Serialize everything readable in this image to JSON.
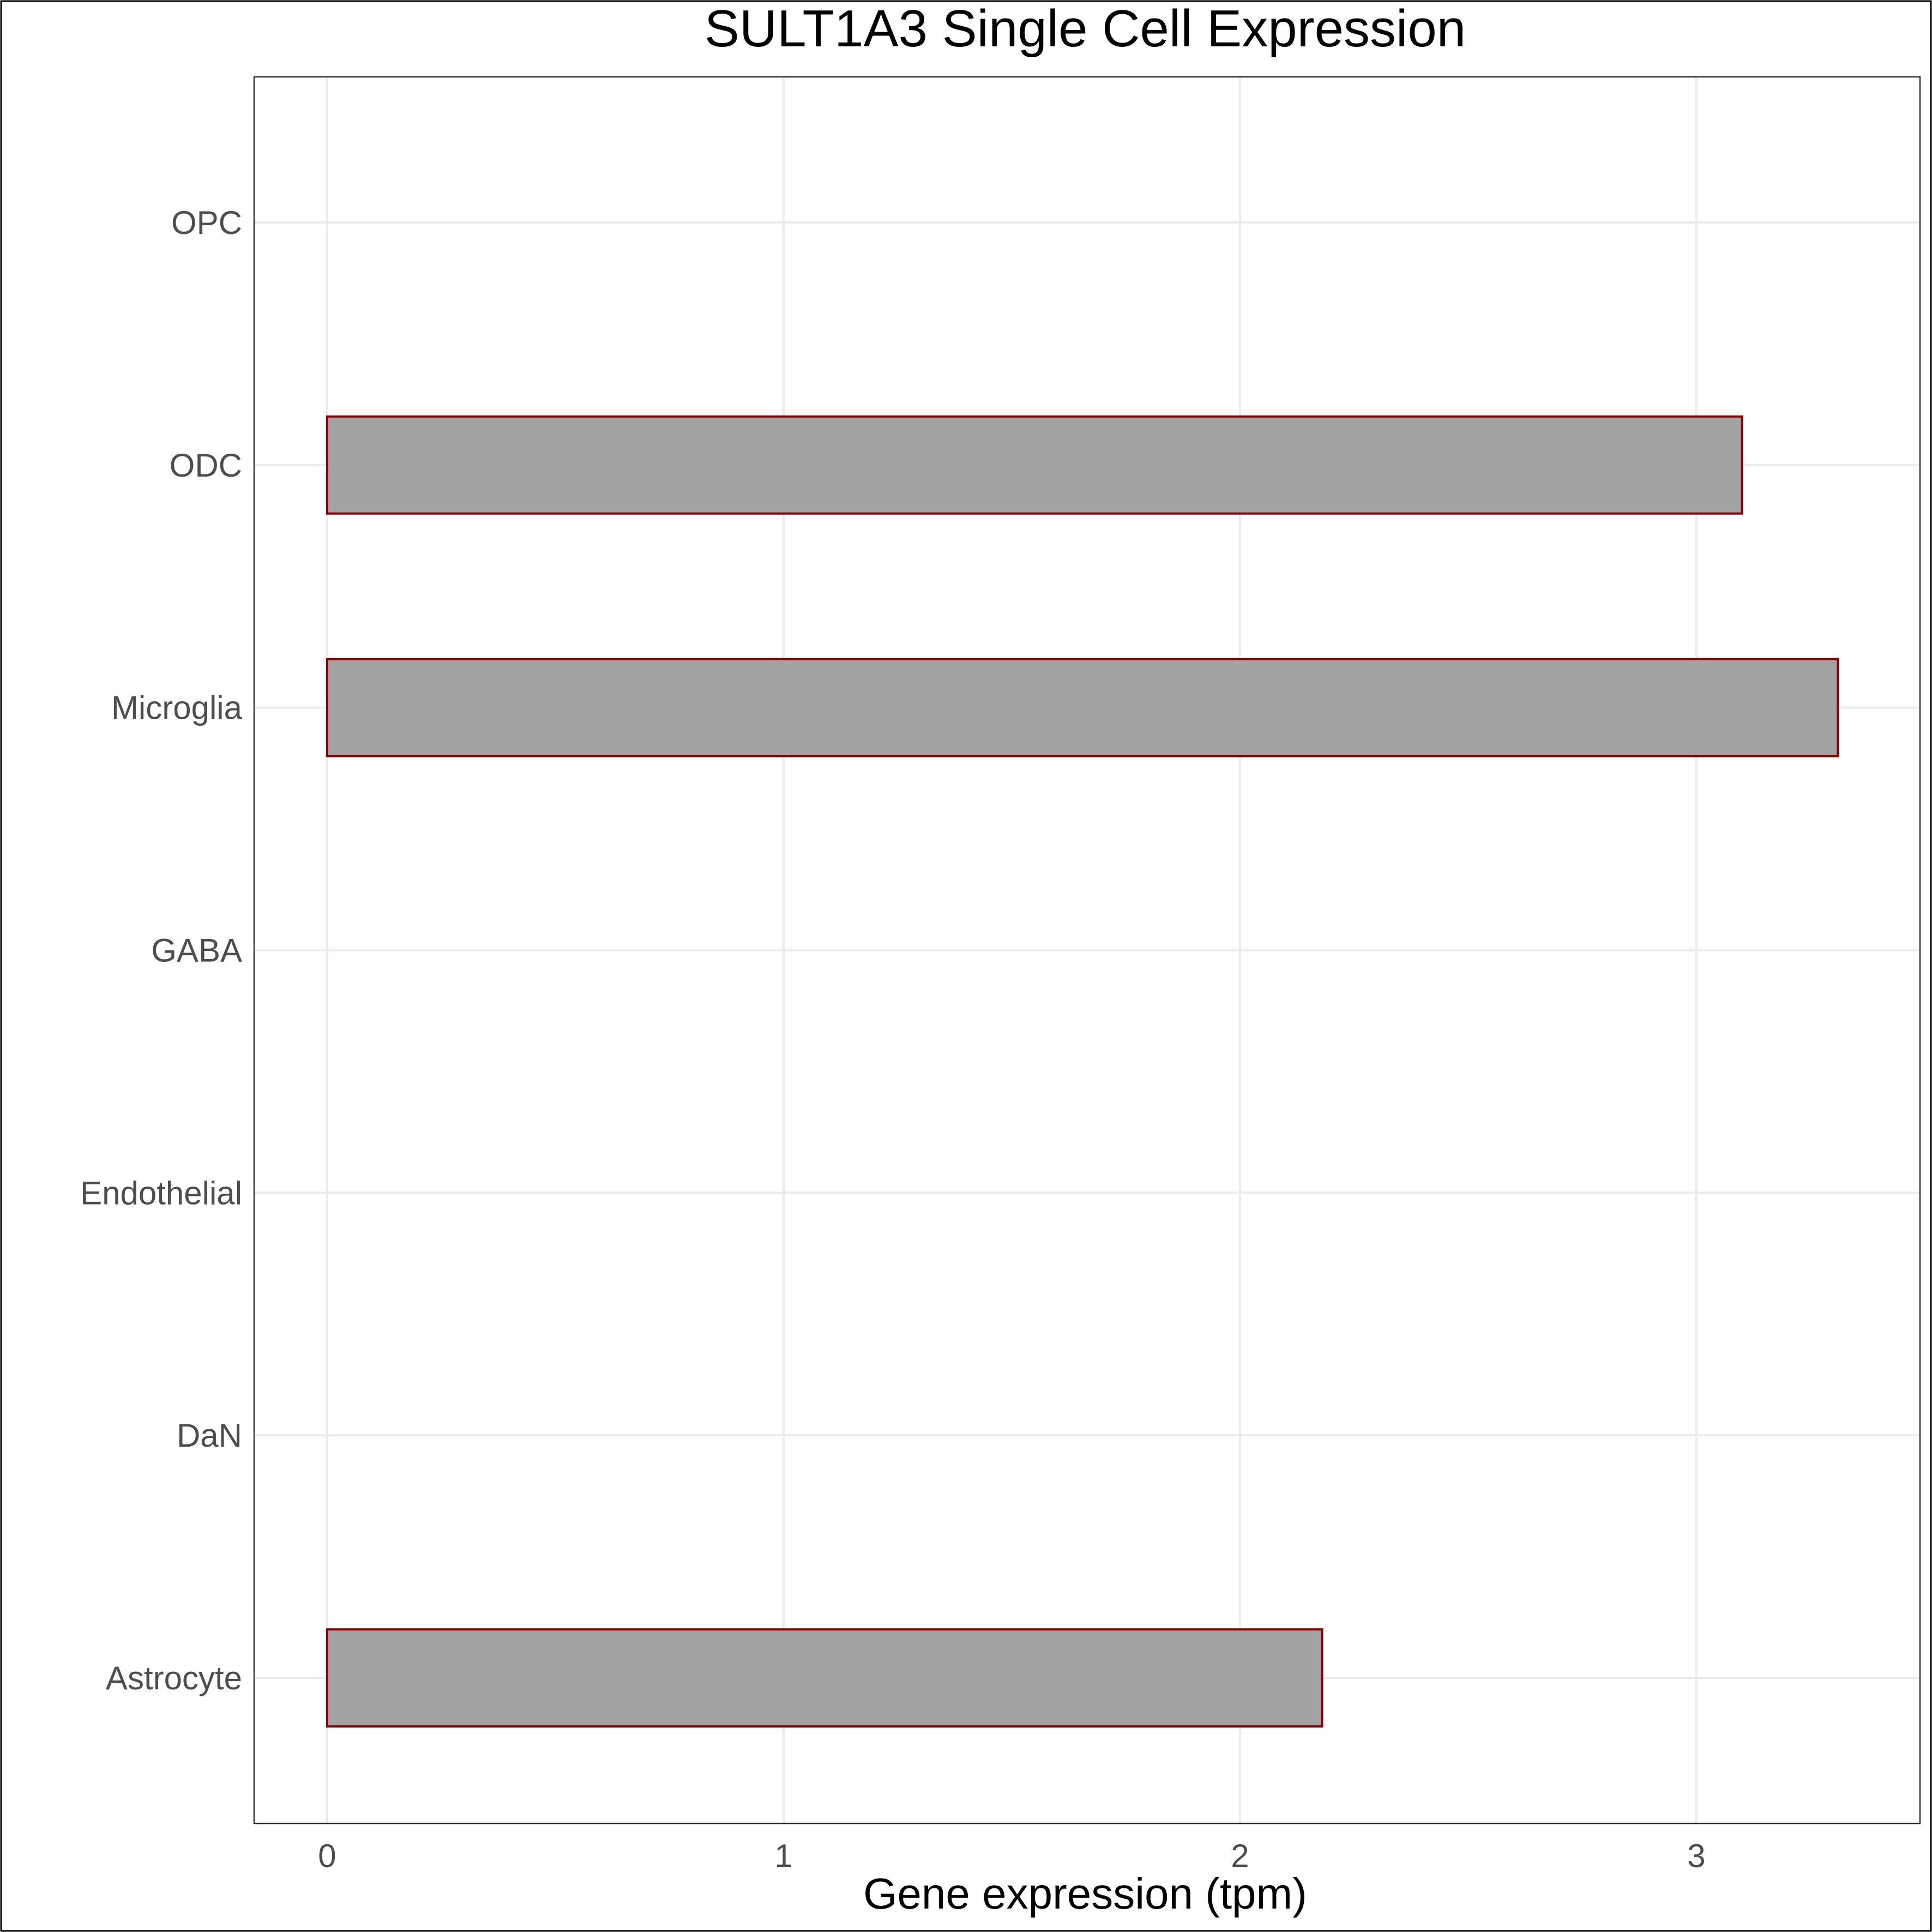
{
  "chart_data": {
    "type": "bar",
    "orientation": "horizontal",
    "title": "SULT1A3 Single Cell Expression",
    "xlabel": "Gene expression (tpm)",
    "ylabel": "",
    "categories": [
      "Astrocyte",
      "DaN",
      "Endothelial",
      "GABA",
      "Microglia",
      "ODC",
      "OPC"
    ],
    "values": [
      2.18,
      0,
      0,
      0,
      3.31,
      3.1,
      0
    ],
    "xlim": [
      -0.16,
      3.49
    ],
    "xticks": [
      0,
      1,
      2,
      3
    ],
    "xtick_labels": [
      "0",
      "1",
      "2",
      "3"
    ],
    "grid": true,
    "colors": {
      "bar_fill": "#a3a3a3",
      "bar_outline": "#8b0000",
      "grid": "#ebebeb",
      "axis_text": "#4d4d4d",
      "title_text": "#000000",
      "panel_border": "#333333"
    }
  }
}
